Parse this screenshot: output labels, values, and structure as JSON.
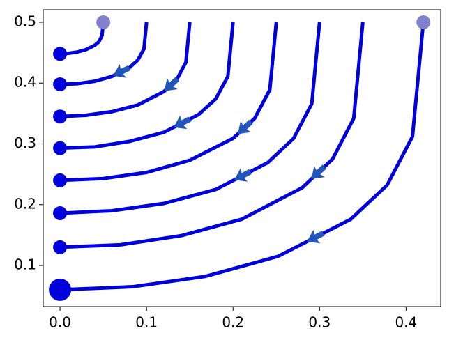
{
  "chart_data": {
    "type": "trajectory",
    "xlim": [
      -0.0194,
      0.44
    ],
    "ylim": [
      0.0324,
      0.5206
    ],
    "xticks": [
      {
        "value": 0,
        "label": "0.0"
      },
      0.1,
      0.2,
      0.3,
      0.4
    ],
    "yticks": [
      0.1,
      0.2,
      0.3,
      0.4,
      0.5
    ],
    "line_color": "#0000dd",
    "end_color": "#0000dd",
    "start_color": "#8080cc",
    "arrow_color": "#2255bb",
    "series": [
      {
        "x": [
          0,
          0.01,
          0.02,
          0.03,
          0.04,
          0.045,
          0.0485,
          0.05
        ],
        "y": [
          0.448,
          0.449,
          0.451,
          0.455,
          0.462,
          0.468,
          0.478,
          0.5
        ],
        "start_marker": true,
        "end_size": 10
      },
      {
        "x": [
          0,
          0.02,
          0.04,
          0.06,
          0.08,
          0.09,
          0.097,
          0.1
        ],
        "y": [
          0.398,
          0.399,
          0.403,
          0.411,
          0.425,
          0.438,
          0.456,
          0.5
        ],
        "start_marker": false,
        "end_size": 10
      },
      {
        "x": [
          0,
          0.03,
          0.06,
          0.09,
          0.12,
          0.135,
          0.1455,
          0.15
        ],
        "y": [
          0.345,
          0.347,
          0.353,
          0.364,
          0.386,
          0.406,
          0.434,
          0.5
        ],
        "start_marker": false,
        "end_size": 10
      },
      {
        "x": [
          0,
          0.04,
          0.08,
          0.12,
          0.16,
          0.18,
          0.194,
          0.2
        ],
        "y": [
          0.293,
          0.295,
          0.304,
          0.319,
          0.348,
          0.374,
          0.411,
          0.5
        ],
        "start_marker": false,
        "end_size": 10
      },
      {
        "x": [
          0,
          0.05,
          0.1,
          0.15,
          0.2,
          0.225,
          0.2425,
          0.25
        ],
        "y": [
          0.24,
          0.243,
          0.253,
          0.273,
          0.309,
          0.342,
          0.389,
          0.5
        ],
        "start_marker": false,
        "end_size": 10
      },
      {
        "x": [
          0,
          0.06,
          0.12,
          0.18,
          0.24,
          0.27,
          0.291,
          0.3
        ],
        "y": [
          0.186,
          0.19,
          0.202,
          0.225,
          0.269,
          0.309,
          0.366,
          0.5
        ],
        "start_marker": false,
        "end_size": 10
      },
      {
        "x": [
          0,
          0.07,
          0.14,
          0.21,
          0.28,
          0.315,
          0.3395,
          0.35
        ],
        "y": [
          0.13,
          0.134,
          0.149,
          0.176,
          0.228,
          0.275,
          0.342,
          0.5
        ],
        "start_marker": false,
        "end_size": 10
      },
      {
        "x": [
          0,
          0.084,
          0.168,
          0.252,
          0.336,
          0.378,
          0.4074,
          0.42
        ],
        "y": [
          0.06,
          0.065,
          0.082,
          0.115,
          0.176,
          0.232,
          0.312,
          0.5
        ],
        "start_marker": true,
        "end_size": 16
      }
    ]
  }
}
